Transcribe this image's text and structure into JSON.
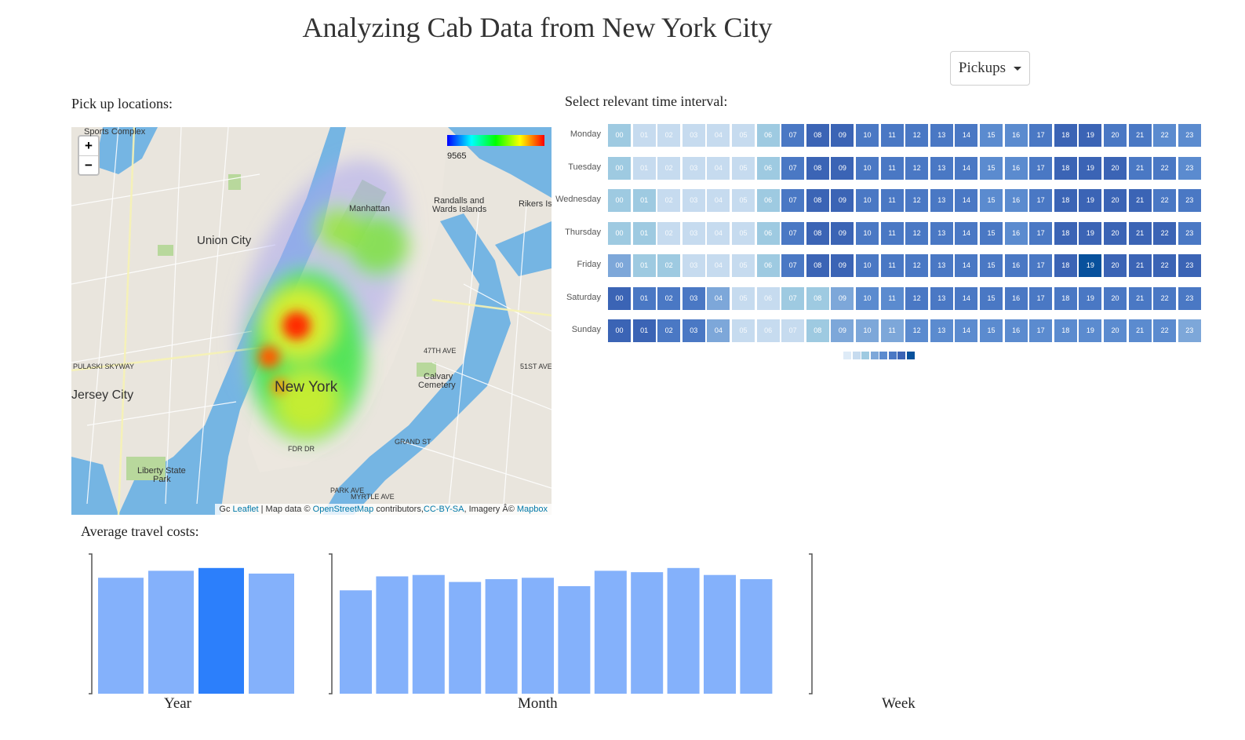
{
  "header": {
    "title": "Analyzing Cab Data from New York City"
  },
  "dropdown": {
    "selected": "Pickups"
  },
  "map_section": {
    "label": "Pick up locations:",
    "zoom_in": "+",
    "zoom_out": "−",
    "legend_value": "9565",
    "attribution": {
      "leaflet": "Leaflet",
      "sep": " | Map data © ",
      "osm": "OpenStreetMap",
      "contrib": " contributors,",
      "ccbysa": "CC-BY-SA",
      "imagery": ", Imagery Â© ",
      "mapbox": "Mapbox"
    },
    "places": {
      "union_city": "Union City",
      "jersey_city": "Jersey City",
      "new_york": "New York",
      "manhattan": "Manhattan",
      "sports_complex": "Sports Complex",
      "randalls": "Randalls and",
      "wards": "Wards Islands",
      "rikers": "Rikers Isl",
      "calvary": "Calvary",
      "cemetery": "Cemetery",
      "liberty": "Liberty State",
      "park": "Park",
      "grand_st": "GRAND ST",
      "fdr": "FDR DR",
      "park_ave": "PARK AVE",
      "myrtle": "MYRTLE AVE",
      "pulaski": "PULASKI SKYWAY",
      "ave47": "47TH AVE",
      "ave51": "51ST AVE",
      "gc": "Gc"
    }
  },
  "heatmap_section": {
    "label": "Select relevant time interval:",
    "days": [
      "Monday",
      "Tuesday",
      "Wednesday",
      "Thursday",
      "Friday",
      "Saturday",
      "Sunday"
    ],
    "hours": [
      "00",
      "01",
      "02",
      "03",
      "04",
      "05",
      "06",
      "07",
      "08",
      "09",
      "10",
      "11",
      "12",
      "13",
      "14",
      "15",
      "16",
      "17",
      "18",
      "19",
      "20",
      "21",
      "22",
      "23"
    ],
    "levels": [
      [
        2,
        1,
        1,
        1,
        1,
        1,
        2,
        5,
        6,
        6,
        5,
        5,
        5,
        5,
        5,
        4,
        4,
        5,
        6,
        6,
        5,
        5,
        4,
        4
      ],
      [
        2,
        1,
        1,
        1,
        1,
        1,
        2,
        5,
        6,
        6,
        5,
        5,
        5,
        5,
        5,
        4,
        4,
        5,
        6,
        6,
        6,
        5,
        5,
        4
      ],
      [
        2,
        2,
        1,
        1,
        1,
        1,
        2,
        5,
        6,
        6,
        5,
        5,
        5,
        5,
        5,
        4,
        4,
        5,
        6,
        6,
        6,
        6,
        5,
        5
      ],
      [
        2,
        2,
        1,
        1,
        1,
        1,
        2,
        5,
        6,
        6,
        5,
        5,
        5,
        5,
        5,
        5,
        4,
        5,
        6,
        6,
        6,
        6,
        6,
        5
      ],
      [
        3,
        2,
        2,
        1,
        1,
        1,
        2,
        5,
        6,
        6,
        5,
        5,
        5,
        5,
        5,
        5,
        5,
        5,
        6,
        7,
        6,
        6,
        6,
        6
      ],
      [
        6,
        5,
        5,
        5,
        3,
        1,
        1,
        2,
        2,
        3,
        4,
        4,
        5,
        5,
        5,
        5,
        5,
        5,
        5,
        5,
        5,
        5,
        5,
        5
      ],
      [
        6,
        6,
        5,
        5,
        3,
        1,
        1,
        1,
        2,
        3,
        3,
        3,
        4,
        4,
        4,
        4,
        4,
        4,
        4,
        4,
        4,
        4,
        4,
        3
      ]
    ],
    "palette": [
      "#deebf7",
      "#c6dbef",
      "#9ecae1",
      "#7da7d9",
      "#5b8bcf",
      "#4a78c4",
      "#3b64b5",
      "#08519c"
    ]
  },
  "costs_section": {
    "label": "Average travel costs:",
    "charts": [
      {
        "xlabel": "Year",
        "values": [
          0.83,
          0.88,
          0.9,
          0.86
        ],
        "highlight": 2
      },
      {
        "xlabel": "Month",
        "values": [
          0.74,
          0.84,
          0.85,
          0.8,
          0.82,
          0.83,
          0.77,
          0.88,
          0.87,
          0.9,
          0.85,
          0.82
        ],
        "highlight": -1
      },
      {
        "xlabel": "Week",
        "values": [],
        "highlight": -1
      }
    ],
    "colors": {
      "bar": "#84b1fb",
      "highlight": "#2c7ffb"
    }
  }
}
